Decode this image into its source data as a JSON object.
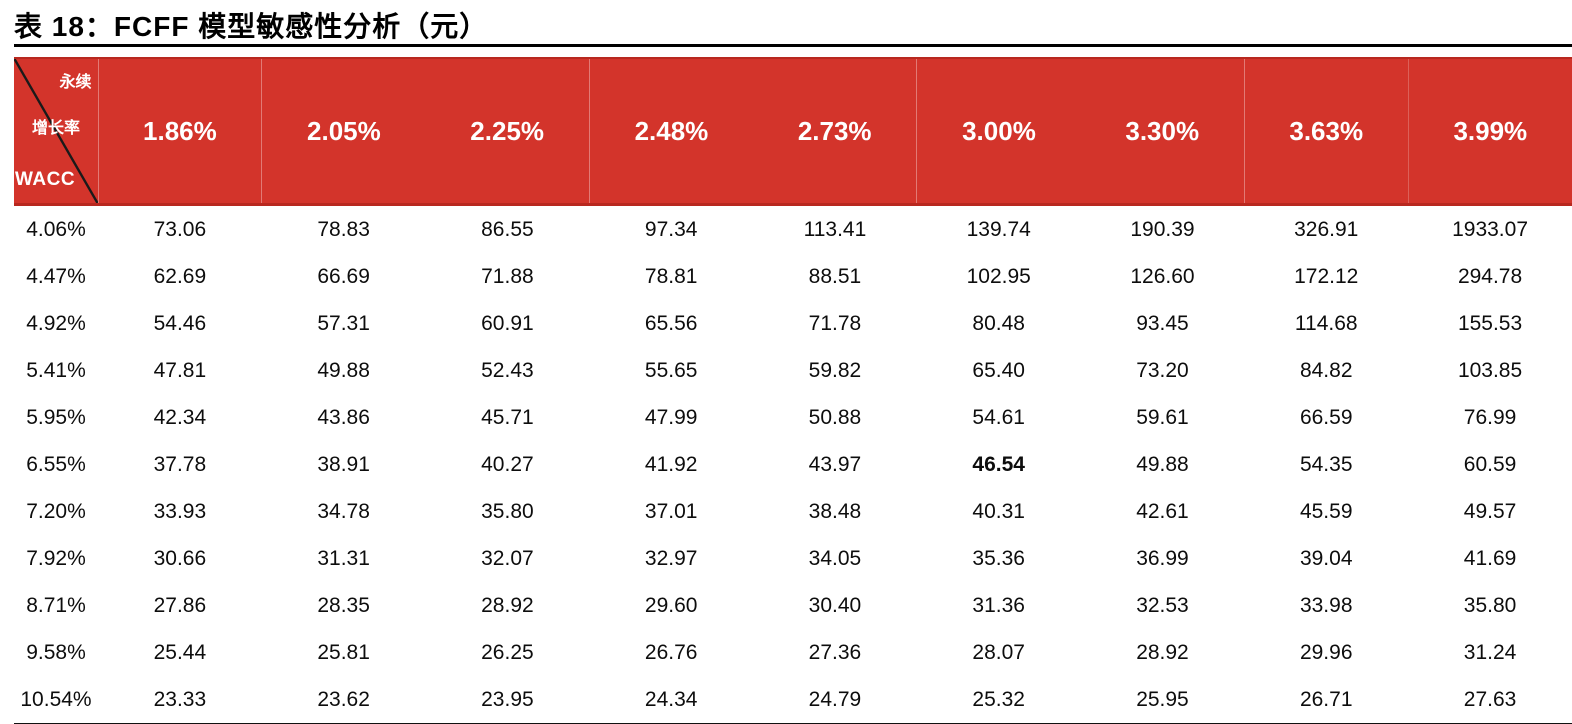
{
  "title": "表 18：FCFF 模型敏感性分析（元）",
  "table": {
    "corner": {
      "top_label": "永续",
      "mid_label": "增长率",
      "bottom_label": "WACC"
    },
    "column_headers": [
      "1.86%",
      "2.05%",
      "2.25%",
      "2.48%",
      "2.73%",
      "3.00%",
      "3.30%",
      "3.63%",
      "3.99%"
    ],
    "rows": [
      {
        "wacc": "4.06%",
        "values": [
          "73.06",
          "78.83",
          "86.55",
          "97.34",
          "113.41",
          "139.74",
          "190.39",
          "326.91",
          "1933.07"
        ]
      },
      {
        "wacc": "4.47%",
        "values": [
          "62.69",
          "66.69",
          "71.88",
          "78.81",
          "88.51",
          "102.95",
          "126.60",
          "172.12",
          "294.78"
        ]
      },
      {
        "wacc": "4.92%",
        "values": [
          "54.46",
          "57.31",
          "60.91",
          "65.56",
          "71.78",
          "80.48",
          "93.45",
          "114.68",
          "155.53"
        ]
      },
      {
        "wacc": "5.41%",
        "values": [
          "47.81",
          "49.88",
          "52.43",
          "55.65",
          "59.82",
          "65.40",
          "73.20",
          "84.82",
          "103.85"
        ]
      },
      {
        "wacc": "5.95%",
        "values": [
          "42.34",
          "43.86",
          "45.71",
          "47.99",
          "50.88",
          "54.61",
          "59.61",
          "66.59",
          "76.99"
        ]
      },
      {
        "wacc": "6.55%",
        "values": [
          "37.78",
          "38.91",
          "40.27",
          "41.92",
          "43.97",
          "46.54",
          "49.88",
          "54.35",
          "60.59"
        ]
      },
      {
        "wacc": "7.20%",
        "values": [
          "33.93",
          "34.78",
          "35.80",
          "37.01",
          "38.48",
          "40.31",
          "42.61",
          "45.59",
          "49.57"
        ]
      },
      {
        "wacc": "7.92%",
        "values": [
          "30.66",
          "31.31",
          "32.07",
          "32.97",
          "34.05",
          "35.36",
          "36.99",
          "39.04",
          "41.69"
        ]
      },
      {
        "wacc": "8.71%",
        "values": [
          "27.86",
          "28.35",
          "28.92",
          "29.60",
          "30.40",
          "31.36",
          "32.53",
          "33.98",
          "35.80"
        ]
      },
      {
        "wacc": "9.58%",
        "values": [
          "25.44",
          "25.81",
          "26.25",
          "26.76",
          "27.36",
          "28.07",
          "28.92",
          "29.96",
          "31.24"
        ]
      },
      {
        "wacc": "10.54%",
        "values": [
          "23.33",
          "23.62",
          "23.95",
          "24.34",
          "24.79",
          "25.32",
          "25.95",
          "26.71",
          "27.63"
        ]
      }
    ],
    "highlight_cell": {
      "row_index": 5,
      "col_index": 5,
      "value": "46.54"
    },
    "colors": {
      "header_bg": "#d3342b",
      "header_edge": "#b8281f",
      "header_text": "#ffffff",
      "body_text": "#0d0d0d",
      "rule": "#000000"
    }
  }
}
